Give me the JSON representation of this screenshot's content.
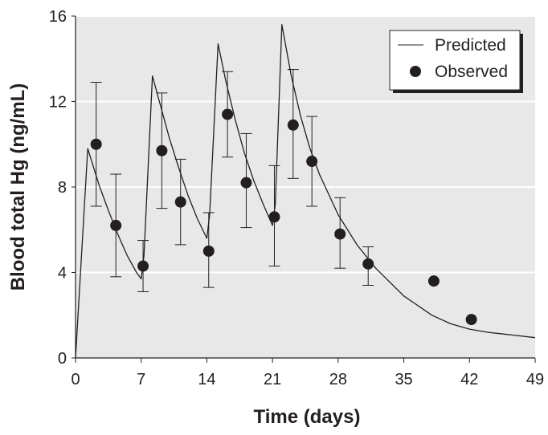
{
  "chart_data": {
    "type": "line",
    "title": "",
    "xlabel": "Time (days)",
    "ylabel": "Blood total Hg (ng/mL)",
    "xlim": [
      0,
      49
    ],
    "ylim": [
      0,
      16
    ],
    "x_ticks": [
      0,
      7,
      14,
      21,
      28,
      35,
      42,
      49
    ],
    "y_ticks": [
      0,
      4,
      8,
      12,
      16
    ],
    "grid": "horizontal",
    "legend": {
      "position": "top-right",
      "entries": [
        "Predicted",
        "Observed"
      ]
    },
    "colors": {
      "background": "#e8e8e8",
      "grid": "#ffffff",
      "line": "#231f20",
      "marker": "#231f20"
    },
    "series": [
      {
        "name": "Predicted",
        "kind": "line",
        "x": [
          0,
          1.3,
          2.5,
          3.5,
          4.5,
          5.5,
          6.5,
          7.0,
          7.3,
          8.2,
          9.0,
          10.0,
          11.0,
          12.0,
          13.0,
          14.0,
          14.3,
          15.2,
          16.0,
          17.0,
          18.0,
          19.0,
          20.0,
          21.0,
          21.3,
          22.0,
          23.0,
          24.0,
          25.0,
          26.0,
          28.0,
          30.0,
          32.0,
          35.0,
          38.0,
          40.0,
          42.0,
          44.0,
          46.0,
          49.0
        ],
        "y": [
          0,
          9.8,
          8.1,
          6.9,
          5.8,
          4.8,
          4.0,
          3.7,
          4.8,
          13.2,
          11.9,
          10.3,
          8.9,
          7.6,
          6.5,
          5.6,
          6.7,
          14.7,
          13.0,
          11.2,
          9.6,
          8.3,
          7.2,
          6.2,
          7.2,
          15.6,
          13.2,
          11.3,
          9.8,
          8.6,
          6.7,
          5.3,
          4.2,
          2.9,
          2.0,
          1.6,
          1.35,
          1.2,
          1.1,
          0.95
        ]
      },
      {
        "name": "Observed",
        "kind": "scatter",
        "x": [
          2.2,
          4.3,
          7.2,
          9.2,
          11.2,
          14.2,
          16.2,
          18.2,
          21.2,
          23.2,
          25.2,
          28.2,
          31.2,
          38.2,
          42.2
        ],
        "y": [
          10.0,
          6.2,
          4.3,
          9.7,
          7.3,
          5.0,
          11.4,
          8.2,
          6.6,
          10.9,
          9.2,
          5.8,
          4.4,
          3.6,
          1.8
        ],
        "err_low": [
          7.1,
          3.8,
          3.1,
          7.0,
          5.3,
          3.3,
          9.4,
          6.1,
          4.3,
          8.4,
          7.1,
          4.2,
          3.4,
          null,
          null
        ],
        "err_high": [
          12.9,
          8.6,
          5.5,
          12.4,
          9.3,
          6.8,
          13.4,
          10.5,
          9.0,
          13.5,
          11.3,
          7.5,
          5.2,
          null,
          null
        ]
      }
    ]
  }
}
